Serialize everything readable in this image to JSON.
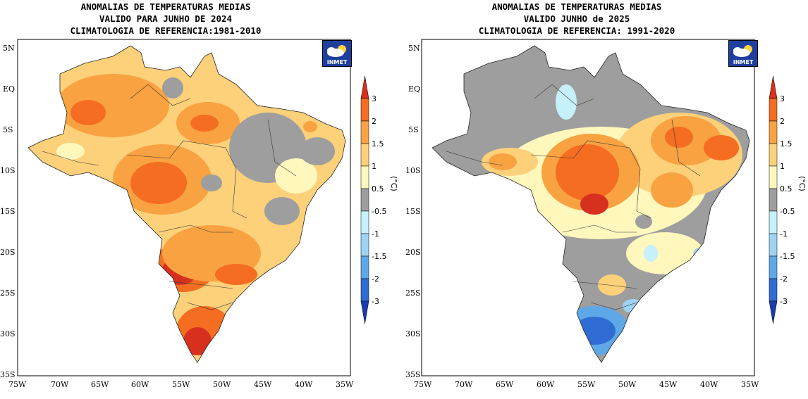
{
  "maps": [
    {
      "title": [
        "ANOMALIAS DE TEMPERATURAS MEDIAS",
        "VALIDO PARA JUNHO DE 2024",
        "CLIMATOLOGIA DE REFERENCIA:1981-2010"
      ],
      "logo": "INMET",
      "lat_labels": [
        "5N",
        "EQ",
        "5S",
        "10S",
        "15S",
        "20S",
        "25S",
        "30S",
        "35S"
      ],
      "lon_labels": [
        "75W",
        "70W",
        "65W",
        "60W",
        "55W",
        "50W",
        "45W",
        "40W",
        "35W"
      ],
      "colorbar": {
        "unit": "(°C)",
        "labels": [
          "3",
          "2",
          "1.5",
          "1",
          "0.5",
          "-0.5",
          "-1",
          "-1.5",
          "-2",
          "-3"
        ],
        "colors": [
          "#d7301f",
          "#f46d21",
          "#f9a242",
          "#fdd07a",
          "#fff7bc",
          "#9e9e9e",
          "#c6f0fb",
          "#9dd3f4",
          "#5fa8e8",
          "#2f6cd3",
          "#1a3bb0"
        ]
      }
    },
    {
      "title": [
        "ANOMALIAS DE TEMPERATURAS MEDIAS",
        "VALIDO JUNHO de 2025",
        "CLIMATOLOGIA DE REFERENCIA: 1991-2020"
      ],
      "logo": "INMET",
      "lat_labels": [
        "5N",
        "EQ",
        "5S",
        "10S",
        "15S",
        "20S",
        "25S",
        "30S",
        "35S"
      ],
      "lon_labels": [
        "75W",
        "70W",
        "65W",
        "60W",
        "55W",
        "50W",
        "45W",
        "40W",
        "35W"
      ],
      "colorbar": {
        "unit": "(°C)",
        "labels": [
          "3",
          "2",
          "1.5",
          "1",
          "0.5",
          "-0.5",
          "-1",
          "-1.5",
          "-2",
          "-3"
        ],
        "colors": [
          "#d7301f",
          "#f46d21",
          "#f9a242",
          "#fdd07a",
          "#fff7bc",
          "#9e9e9e",
          "#c6f0fb",
          "#9dd3f4",
          "#5fa8e8",
          "#2f6cd3",
          "#1a3bb0"
        ]
      }
    }
  ]
}
